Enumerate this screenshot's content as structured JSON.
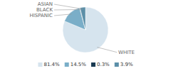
{
  "chart_data": {
    "type": "pie",
    "categories": [
      "WHITE",
      "HISPANIC",
      "BLACK",
      "ASIAN"
    ],
    "values": [
      81.4,
      14.5,
      0.3,
      3.9
    ],
    "colors": [
      "#d6e4ee",
      "#7aaec8",
      "#1a3a52",
      "#5b8fa8"
    ],
    "value_labels": [
      "81.4%",
      "14.5%",
      "0.3%",
      "3.9%"
    ],
    "legend": "bottom"
  }
}
